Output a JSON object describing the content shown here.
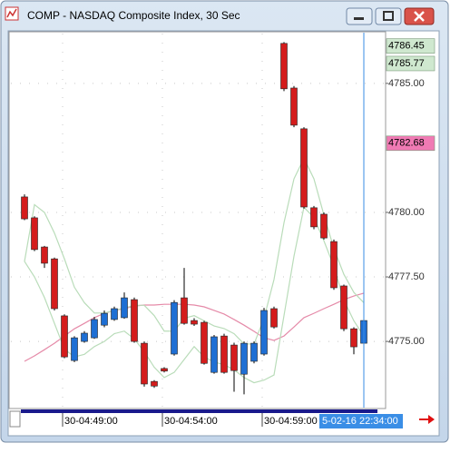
{
  "window_title": "COMP - NASDAQ Composite Index, 30 Sec",
  "chart_data": {
    "type": "candlestick",
    "categories": [
      null,
      null,
      null,
      null,
      "30-04:49:00",
      null,
      null,
      null,
      null,
      null,
      null,
      null,
      null,
      null,
      "30-04:54:00",
      null,
      null,
      null,
      null,
      null,
      null,
      null,
      null,
      null,
      "30-04:59:00",
      null,
      null,
      null,
      null,
      null,
      null,
      null,
      null,
      null,
      null
    ],
    "open": [
      4780.6,
      4779.79,
      4778.66,
      4778.2,
      4775.99,
      4774.26,
      4775.0,
      4775.14,
      4775.63,
      4775.85,
      4775.92,
      4776.62,
      4774.93,
      4773.45,
      4773.95,
      4774.51,
      4776.69,
      4775.81,
      4775.74,
      4773.8,
      4775.21,
      4774.86,
      4773.73,
      4774.23,
      4774.51,
      4776.27,
      4786.55,
      4784.82,
      4783.24,
      4780.18,
      4779.93,
      4778.87,
      4777.15,
      4775.49,
      4774.93
    ],
    "high": [
      4780.7,
      4779.85,
      4778.7,
      4778.25,
      4776.05,
      4775.2,
      4775.4,
      4775.95,
      4776.2,
      4776.35,
      4776.9,
      4776.7,
      4775.0,
      4773.5,
      4774.0,
      4776.6,
      4777.85,
      4775.9,
      4775.8,
      4775.25,
      4775.3,
      4774.95,
      4775.0,
      4775.0,
      4776.3,
      4776.35,
      4786.6,
      4784.9,
      4783.3,
      4780.25,
      4780.0,
      4778.95,
      4777.2,
      4775.55,
      4775.9
    ],
    "low": [
      4779.7,
      4778.5,
      4777.85,
      4776.2,
      4774.35,
      4774.2,
      4774.95,
      4775.1,
      4775.55,
      4775.8,
      4775.88,
      4774.95,
      4773.25,
      4773.2,
      4773.8,
      4774.45,
      4775.65,
      4775.6,
      4774.1,
      4773.75,
      4773.75,
      4773.05,
      4772.95,
      4774.15,
      4774.45,
      4775.5,
      4784.7,
      4783.3,
      4780.15,
      4779.35,
      4778.95,
      4777.0,
      4775.4,
      4774.5,
      4774.4
    ],
    "close": [
      4779.75,
      4778.56,
      4778.03,
      4776.27,
      4774.4,
      4775.14,
      4775.32,
      4775.85,
      4776.09,
      4776.27,
      4776.69,
      4775.0,
      4773.35,
      4773.27,
      4773.85,
      4776.51,
      4775.7,
      4775.67,
      4774.15,
      4775.18,
      4773.8,
      4773.87,
      4774.93,
      4774.93,
      4776.2,
      4775.56,
      4784.79,
      4783.38,
      4780.21,
      4779.44,
      4779.01,
      4777.08,
      4775.49,
      4774.79,
      4775.81
    ],
    "up_color": "#1e6fd4",
    "down_color": "#d41c1c",
    "lines": [
      {
        "color": "#e58aa8",
        "values": [
          4774.23,
          4774.44,
          4774.68,
          4774.93,
          4775.21,
          4775.49,
          4775.7,
          4775.92,
          4776.09,
          4776.2,
          4776.27,
          4776.37,
          4776.41,
          4776.41,
          4776.44,
          4776.44,
          4776.44,
          4776.41,
          4776.34,
          4776.2,
          4776.06,
          4775.85,
          4775.63,
          4775.39,
          4775.14,
          4775.04,
          4775.21,
          4775.56,
          4775.92,
          4776.09,
          4776.27,
          4776.44,
          4776.62,
          4776.76,
          4776.87
        ]
      },
      {
        "color": "#b9dcb9",
        "values": [
          4778.1,
          4780.3,
          4780.0,
          4779.2,
          4778.2,
          4777.1,
          4776.5,
          4776.1,
          4776.1,
          4776.2,
          4776.3,
          4776.4,
          4776.4,
          4776.0,
          4775.4,
          4775.4,
          4775.9,
          4776.0,
          4775.8,
          4775.6,
          4775.5,
          4775.3,
          4774.9,
          4774.9,
          4775.9,
          4777.4,
          4779.6,
          4781.3,
          4782.1,
          4781.3,
          4779.9,
          4778.6,
          4777.6,
          4776.9,
          4776.5
        ]
      },
      {
        "color": "#b9dcb9",
        "values": [
          4778.1,
          4777.5,
          4776.7,
          4775.7,
          4774.7,
          4774.4,
          4774.5,
          4774.8,
          4775.0,
          4775.3,
          4775.4,
          4775.1,
          4774.6,
          4774.0,
          4773.6,
          4773.8,
          4774.3,
          4774.8,
          4774.4,
          4774.2,
          4774.1,
          4773.9,
          4773.6,
          4773.4,
          4773.5,
          4773.7,
          4776.0,
          4778.3,
          4780.2,
          4779.8,
          4778.9,
          4777.9,
          4776.6,
          4775.8,
          4775.2
        ]
      }
    ],
    "ylim": [
      4772.4,
      4787.0
    ],
    "yticks": [
      {
        "value": 4775,
        "label": "4775.00"
      },
      {
        "value": 4777.5,
        "label": "4777.50"
      },
      {
        "value": 4780,
        "label": "4780.00"
      },
      {
        "value": 4785,
        "label": "4785.00"
      }
    ],
    "grid": true,
    "price_labels": [
      {
        "value": 4786.45,
        "color": "#cfe8cf"
      },
      {
        "value": 4785.77,
        "color": "#cfe8cf"
      },
      {
        "value": 4782.68,
        "color": "#f07ab4"
      }
    ],
    "cursor_label": "5-02-16 22:34:00",
    "cursor_color": "#3a8ee6"
  }
}
